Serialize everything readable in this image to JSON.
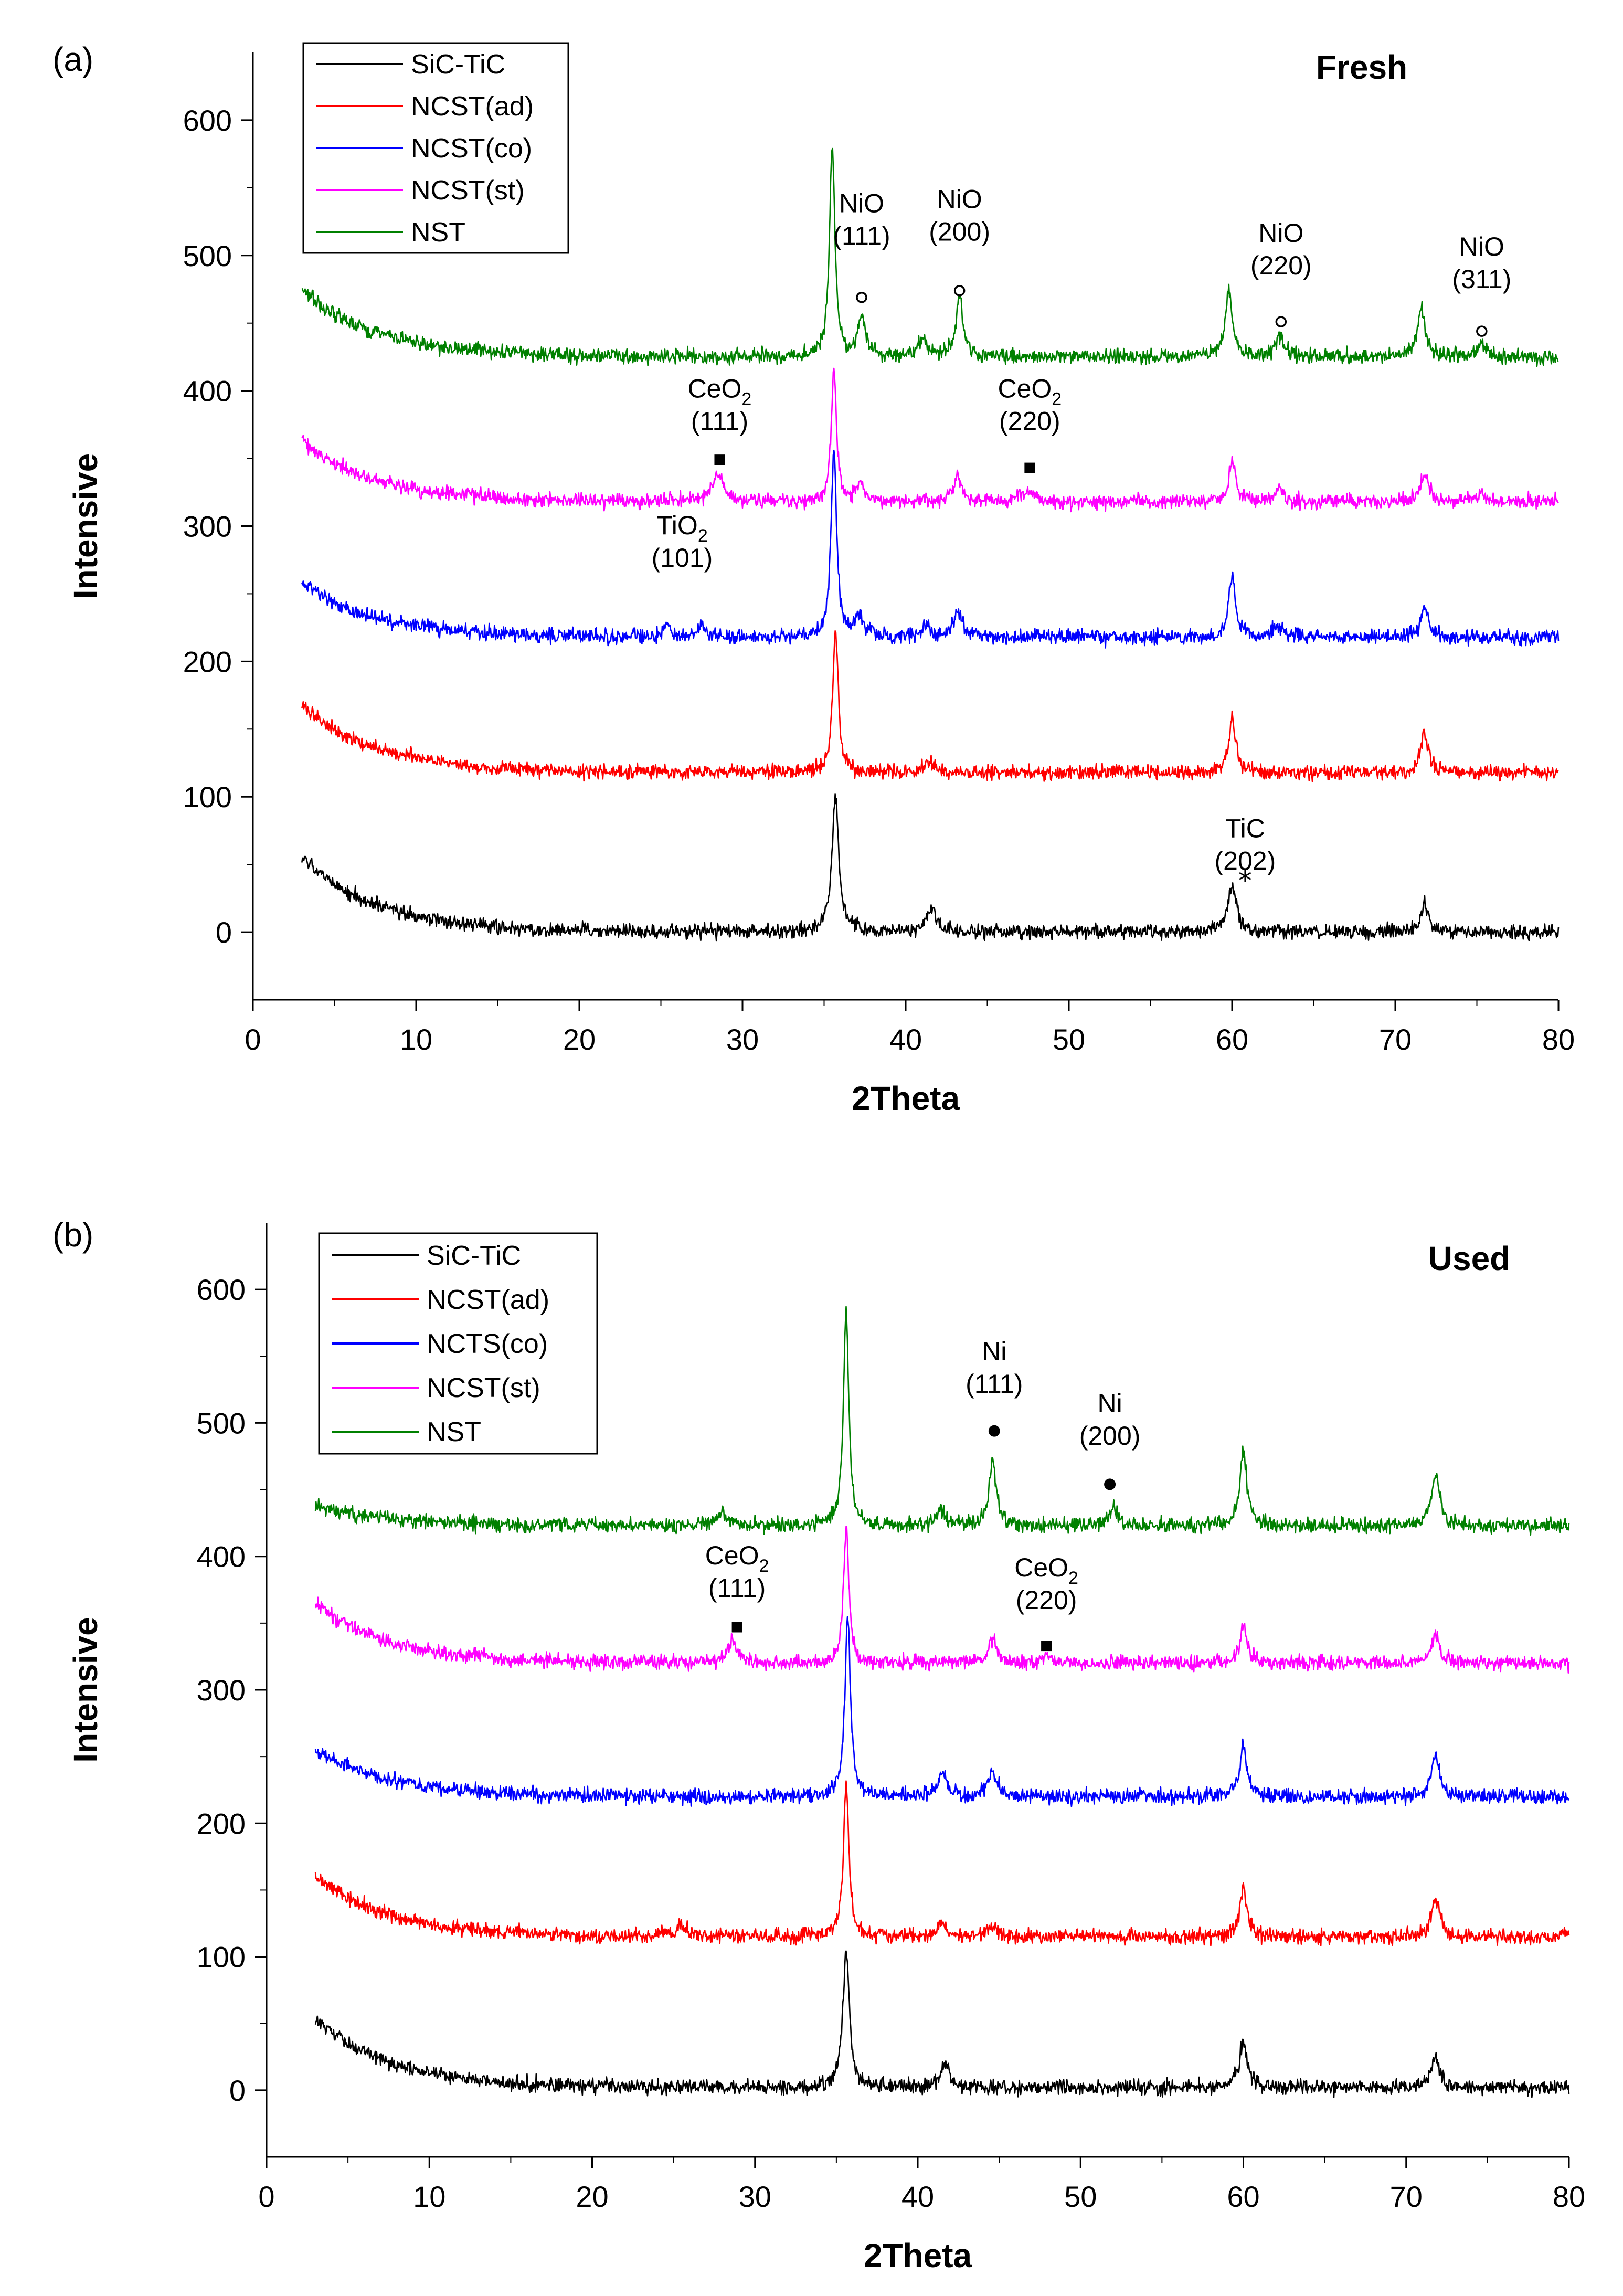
{
  "chart_data": [
    {
      "panel": "(a)",
      "type": "line",
      "title": "Fresh",
      "xlabel": "2Theta",
      "ylabel": "Intensive",
      "xlim": [
        0,
        80
      ],
      "ylim": [
        -50,
        650
      ],
      "xticks": [
        0,
        10,
        20,
        30,
        40,
        50,
        60,
        70,
        80
      ],
      "yticks": [
        0,
        100,
        200,
        300,
        400,
        500,
        600
      ],
      "legend_position": "top-left",
      "legend": [
        "SiC-TiC",
        "NCST(ad)",
        "NCST(co)",
        "NCST(st)",
        "NST"
      ],
      "series": [
        {
          "name": "SiC-TiC",
          "color": "#000000",
          "offset": 0,
          "start_excess": 55,
          "peaks": [
            [
              35.7,
              100,
              0.25
            ],
            [
              41.6,
              18,
              0.35
            ],
            [
              60.0,
              35,
              0.3
            ],
            [
              71.8,
              20,
              0.3
            ]
          ]
        },
        {
          "name": "NCST(ad)",
          "color": "#ff0000",
          "offset": 118,
          "start_excess": 50,
          "peaks": [
            [
              35.7,
              105,
              0.2
            ],
            [
              41.5,
              8,
              0.35
            ],
            [
              60.0,
              40,
              0.25
            ],
            [
              71.8,
              28,
              0.3
            ]
          ]
        },
        {
          "name": "NCST(co)",
          "color": "#0000ff",
          "offset": 218,
          "start_excess": 40,
          "peaks": [
            [
              25.4,
              10,
              0.2
            ],
            [
              27.5,
              10,
              0.2
            ],
            [
              35.6,
              140,
              0.2
            ],
            [
              37.2,
              15,
              0.3
            ],
            [
              41.2,
              8,
              0.3
            ],
            [
              43.2,
              20,
              0.3
            ],
            [
              60.0,
              45,
              0.25
            ],
            [
              62.8,
              8,
              0.35
            ],
            [
              71.8,
              22,
              0.3
            ]
          ]
        },
        {
          "name": "NCST(st)",
          "color": "#ff00ff",
          "offset": 318,
          "start_excess": 45,
          "peaks": [
            [
              28.5,
              20,
              0.4
            ],
            [
              35.6,
              95,
              0.2
            ],
            [
              37.2,
              12,
              0.3
            ],
            [
              43.2,
              18,
              0.3
            ],
            [
              47.5,
              8,
              0.4
            ],
            [
              60.0,
              30,
              0.25
            ],
            [
              62.8,
              8,
              0.35
            ],
            [
              71.8,
              20,
              0.3
            ],
            [
              75.2,
              6,
              0.3
            ]
          ]
        },
        {
          "name": "NST",
          "color": "#008000",
          "offset": 425,
          "start_excess": 50,
          "peaks": [
            [
              35.5,
              155,
              0.2
            ],
            [
              37.3,
              30,
              0.25
            ],
            [
              41.0,
              12,
              0.35
            ],
            [
              43.3,
              45,
              0.25
            ],
            [
              59.8,
              50,
              0.25
            ],
            [
              62.9,
              15,
              0.35
            ],
            [
              71.6,
              35,
              0.3
            ],
            [
              75.3,
              10,
              0.3
            ]
          ]
        }
      ],
      "annotations": [
        {
          "label": "NiO",
          "sub": "",
          "index": "(111)",
          "x": 37.3,
          "y": 532,
          "marker": "open-circle",
          "my": 469
        },
        {
          "label": "NiO",
          "sub": "",
          "index": "(200)",
          "x": 43.3,
          "y": 535,
          "marker": "open-circle",
          "my": 474
        },
        {
          "label": "NiO",
          "sub": "",
          "index": "(220)",
          "x": 63.0,
          "y": 510,
          "marker": "open-circle",
          "my": 451
        },
        {
          "label": "NiO",
          "sub": "",
          "index": "(311)",
          "x": 75.3,
          "y": 500,
          "marker": "open-circle",
          "my": 444
        },
        {
          "label": "CeO",
          "sub": "2",
          "index": "(111)",
          "x": 28.6,
          "y": 395,
          "marker": "square",
          "my": 349
        },
        {
          "label": "CeO",
          "sub": "2",
          "index": "(220)",
          "x": 47.6,
          "y": 395,
          "marker": "square",
          "my": 343
        },
        {
          "label": "TiO",
          "sub": "2",
          "index": "(101)",
          "x": 26.3,
          "y": 294,
          "marker": "none",
          "my": 0
        },
        {
          "label": "TiC",
          "sub": "",
          "index": "(202)",
          "x": 60.8,
          "y": 70,
          "marker": "star",
          "my": 42
        }
      ]
    },
    {
      "panel": "(b)",
      "type": "line",
      "title": "Used",
      "xlabel": "2Theta",
      "ylabel": "Intensive",
      "xlim": [
        0,
        80
      ],
      "ylim": [
        -50,
        650
      ],
      "xticks": [
        0,
        10,
        20,
        30,
        40,
        50,
        60,
        70,
        80
      ],
      "yticks": [
        0,
        100,
        200,
        300,
        400,
        500,
        600
      ],
      "legend_position": "top-left",
      "legend": [
        "SiC-TiC",
        "NCST(ad)",
        "NCTS(co)",
        "NCST(st)",
        "NST"
      ],
      "series": [
        {
          "name": "SiC-TiC",
          "color": "#000000",
          "offset": 2,
          "start_excess": 52,
          "peaks": [
            [
              35.6,
              100,
              0.25
            ],
            [
              41.7,
              18,
              0.35
            ],
            [
              60.0,
              35,
              0.3
            ],
            [
              71.8,
              22,
              0.3
            ]
          ]
        },
        {
          "name": "NCST(ad)",
          "color": "#ff0000",
          "offset": 115,
          "start_excess": 45,
          "peaks": [
            [
              25.5,
              8,
              0.5
            ],
            [
              35.6,
              115,
              0.2
            ],
            [
              41.5,
              10,
              0.3
            ],
            [
              44.6,
              8,
              0.35
            ],
            [
              60.0,
              38,
              0.25
            ],
            [
              71.8,
              28,
              0.3
            ]
          ]
        },
        {
          "name": "NCTS(co)",
          "color": "#0000ff",
          "offset": 220,
          "start_excess": 35,
          "peaks": [
            [
              35.7,
              135,
              0.2
            ],
            [
              41.5,
              18,
              0.3
            ],
            [
              44.6,
              20,
              0.3
            ],
            [
              60.0,
              40,
              0.25
            ],
            [
              71.8,
              30,
              0.3
            ]
          ]
        },
        {
          "name": "NCST(st)",
          "color": "#ff00ff",
          "offset": 320,
          "start_excess": 45,
          "peaks": [
            [
              28.6,
              15,
              0.4
            ],
            [
              35.6,
              100,
              0.2
            ],
            [
              44.6,
              18,
              0.3
            ],
            [
              47.8,
              6,
              0.4
            ],
            [
              60.0,
              30,
              0.25
            ],
            [
              71.8,
              22,
              0.3
            ]
          ]
        },
        {
          "name": "NST",
          "color": "#008000",
          "offset": 423,
          "start_excess": 15,
          "peaks": [
            [
              28.0,
              8,
              0.4
            ],
            [
              35.6,
              160,
              0.2
            ],
            [
              41.4,
              12,
              0.3
            ],
            [
              44.6,
              50,
              0.25
            ],
            [
              52.0,
              12,
              0.35
            ],
            [
              60.0,
              55,
              0.25
            ],
            [
              71.8,
              38,
              0.3
            ]
          ]
        }
      ],
      "annotations": [
        {
          "label": "Ni",
          "sub": "",
          "index": "(111)",
          "x": 44.7,
          "y": 547,
          "marker": "filled-circle",
          "my": 494
        },
        {
          "label": "Ni",
          "sub": "",
          "index": "(200)",
          "x": 51.8,
          "y": 508,
          "marker": "filled-circle",
          "my": 454
        },
        {
          "label": "CeO",
          "sub": "2",
          "index": "(111)",
          "x": 28.9,
          "y": 394,
          "marker": "square",
          "my": 347
        },
        {
          "label": "CeO",
          "sub": "2",
          "index": "(220)",
          "x": 47.9,
          "y": 385,
          "marker": "square",
          "my": 333
        }
      ]
    }
  ]
}
